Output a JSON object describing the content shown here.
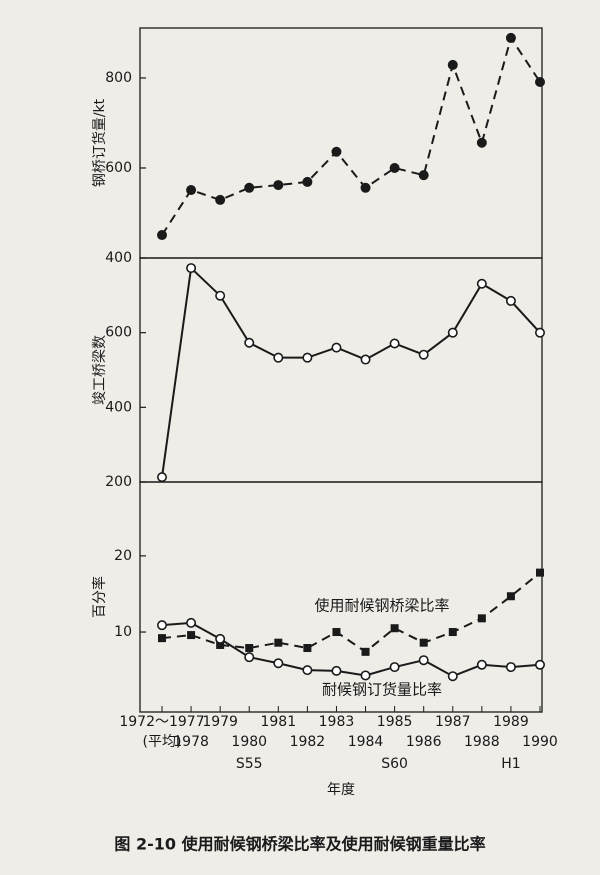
{
  "caption": "图 2-10   使用耐候钢桥梁比率及使用耐候钢重量比率",
  "chart_data": [
    {
      "type": "line",
      "ylabel": "钢桥订货量/kt",
      "ylim": [
        400,
        911
      ],
      "yticks": [
        400,
        600,
        800
      ],
      "series": [
        {
          "color": "#1a1a1a",
          "line_style": "dashed",
          "marker": "filled-circle",
          "values": [
            451,
            551,
            529,
            556,
            562,
            569,
            636,
            556,
            600,
            584,
            829,
            656,
            889,
            791
          ]
        }
      ]
    },
    {
      "type": "line",
      "ylabel": "竣工桥梁数",
      "ylim": [
        200,
        800
      ],
      "yticks": [
        200,
        400,
        600
      ],
      "series": [
        {
          "color": "#1a1a1a",
          "line_style": "solid",
          "marker": "open-circle",
          "values": [
            213,
            773,
            699,
            573,
            533,
            533,
            560,
            528,
            571,
            541,
            600,
            731,
            685,
            600
          ]
        }
      ]
    },
    {
      "type": "line",
      "ylabel": "百分率",
      "xlabel": "年度",
      "ylim": [
        -0.5,
        29.7
      ],
      "yticks": [
        10,
        20
      ],
      "categories": [
        "1972～1977",
        "1978",
        "1979",
        "1980",
        "1981",
        "1982",
        "1983",
        "1984",
        "1985",
        "1986",
        "1987",
        "1988",
        "1989",
        "1990"
      ],
      "x_sublabels": [
        "(平均)",
        null,
        null,
        "S55",
        null,
        null,
        null,
        null,
        "S60",
        null,
        null,
        null,
        "H1",
        null
      ],
      "series": [
        {
          "name": "使用耐候钢桥梁比率",
          "color": "#1a1a1a",
          "line_style": "dashed",
          "marker": "filled-square",
          "values": [
            9.2,
            9.6,
            8.3,
            7.9,
            8.6,
            7.9,
            10.0,
            7.4,
            10.5,
            8.6,
            10.0,
            11.8,
            14.7,
            17.8
          ]
        },
        {
          "name": "耐候钢订货量比率",
          "color": "#1a1a1a",
          "line_style": "solid",
          "marker": "open-circle",
          "values": [
            10.9,
            11.2,
            9.1,
            6.7,
            5.9,
            5.0,
            4.9,
            4.3,
            5.4,
            6.3,
            4.2,
            5.7,
            5.4,
            5.7
          ]
        }
      ]
    }
  ]
}
